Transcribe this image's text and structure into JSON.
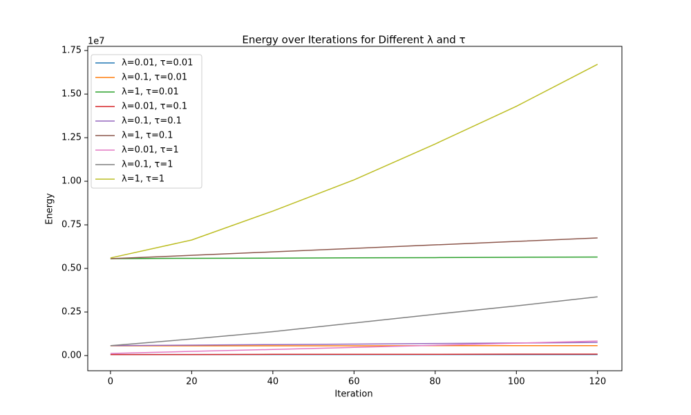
{
  "chart_data": {
    "type": "line",
    "title": "Energy over Iterations for Different λ and τ",
    "x_label": "Iteration",
    "y_label": "Energy",
    "y_offset_label": "1e7",
    "x": [
      0,
      20,
      40,
      60,
      80,
      100,
      120
    ],
    "xlim": [
      -5.6,
      126
    ],
    "xticks": [
      0,
      20,
      40,
      60,
      80,
      100,
      120
    ],
    "ylim": [
      -0.087,
      1.774
    ],
    "yticks": [
      {
        "value": 0,
        "label": "0.00"
      },
      {
        "value": 0.25,
        "label": "0.25"
      },
      {
        "value": 0.5,
        "label": "0.50"
      },
      {
        "value": 0.75,
        "label": "0.75"
      },
      {
        "value": 1,
        "label": "1.00"
      },
      {
        "value": 1.25,
        "label": "1.25"
      },
      {
        "value": 1.5,
        "label": "1.50"
      },
      {
        "value": 1.75,
        "label": "1.75"
      }
    ],
    "legend": "upper left",
    "series": [
      {
        "name": "λ=0.01, τ=0.01",
        "color": "#1f77b4",
        "values": [
          0.0056,
          0.0056,
          0.0056,
          0.0056,
          0.0056,
          0.0056,
          0.0056
        ]
      },
      {
        "name": "λ=0.1, τ=0.01",
        "color": "#ff7f0e",
        "values": [
          0.056,
          0.056,
          0.056,
          0.056,
          0.057,
          0.057,
          0.057
        ]
      },
      {
        "name": "λ=1, τ=0.01",
        "color": "#2ca02c",
        "values": [
          0.556,
          0.558,
          0.559,
          0.561,
          0.562,
          0.564,
          0.565
        ]
      },
      {
        "name": "λ=0.01, τ=0.1",
        "color": "#d62728",
        "values": [
          0.006,
          0.006,
          0.007,
          0.007,
          0.007,
          0.008,
          0.008
        ]
      },
      {
        "name": "λ=0.1, τ=0.1",
        "color": "#9467bd",
        "values": [
          0.057,
          0.06,
          0.063,
          0.066,
          0.069,
          0.072,
          0.075
        ]
      },
      {
        "name": "λ=1, τ=0.1",
        "color": "#8c564b",
        "values": [
          0.556,
          0.575,
          0.595,
          0.615,
          0.635,
          0.655,
          0.675
        ]
      },
      {
        "name": "λ=0.01, τ=1",
        "color": "#e377c2",
        "values": [
          0.012,
          0.024,
          0.035,
          0.047,
          0.059,
          0.071,
          0.083
        ]
      },
      {
        "name": "λ=0.1, τ=1",
        "color": "#7f7f7f",
        "values": [
          0.057,
          0.095,
          0.137,
          0.187,
          0.237,
          0.285,
          0.337
        ]
      },
      {
        "name": "λ=1, τ=1",
        "color": "#bcbd22",
        "values": [
          0.56,
          0.663,
          0.829,
          1.008,
          1.214,
          1.43,
          1.671
        ]
      }
    ]
  }
}
